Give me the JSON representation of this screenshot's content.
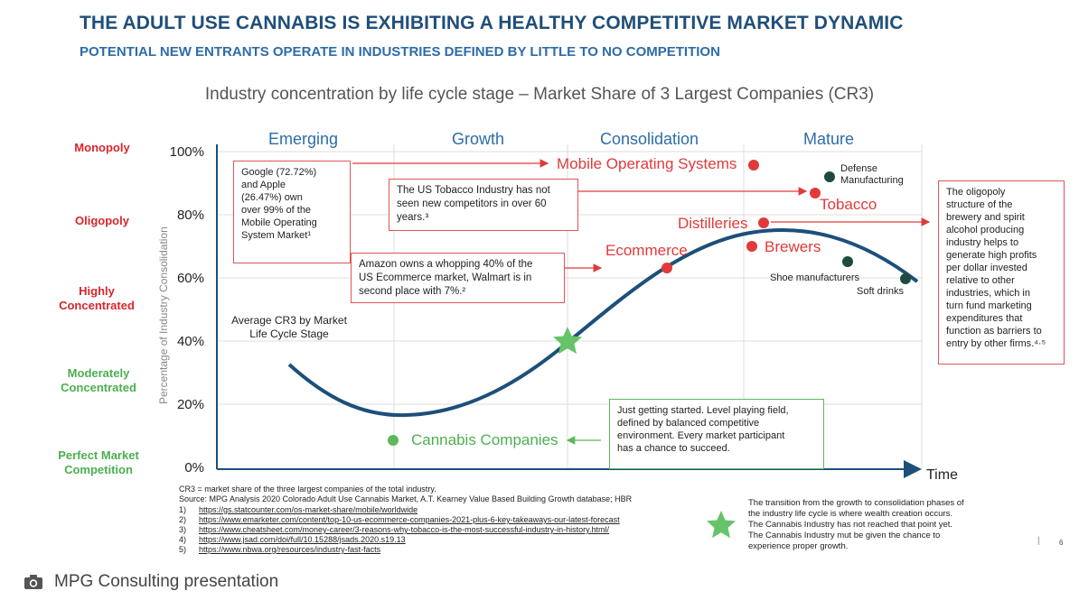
{
  "slide": {
    "title": "THE ADULT USE CANNABIS IS EXHIBITING A HEALTHY COMPETITIVE MARKET DYNAMIC",
    "subtitle": "POTENTIAL NEW ENTRANTS OPERATE IN INDUSTRIES DEFINED BY LITTLE TO NO COMPETITION",
    "chart_title": "Industry concentration by life cycle stage – Market Share of 3 Largest Companies (CR3)",
    "page_number": "6",
    "page_separator": "|"
  },
  "stages": [
    "Emerging",
    "Growth",
    "Consolidation",
    "Mature"
  ],
  "categories": [
    {
      "label_lines": [
        "Monopoly"
      ],
      "color": "#d9262b"
    },
    {
      "label_lines": [
        "Oligopoly"
      ],
      "color": "#d9262b"
    },
    {
      "label_lines": [
        "Highly",
        "Concentrated"
      ],
      "color": "#d9262b"
    },
    {
      "label_lines": [
        "Moderately",
        "Concentrated"
      ],
      "color": "#4caf50"
    },
    {
      "label_lines": [
        "Perfect Market",
        "Competition"
      ],
      "color": "#4caf50"
    }
  ],
  "axis": {
    "y_label": "Percentage of Industry Consolidation",
    "y_ticks": [
      "100%",
      "80%",
      "60%",
      "40%",
      "20%",
      "0%"
    ],
    "x_label": "Time"
  },
  "annotations": {
    "google_box": [
      "Google (72.72%)",
      "and Apple",
      "(26.47%) own",
      "over 99% of the",
      "Mobile Operating",
      "System Market¹"
    ],
    "tobacco_box": [
      "The US Tobacco Industry has not",
      "seen new competitors in over 60",
      "years.³"
    ],
    "amazon_box": [
      "Amazon owns a whopping 40% of the",
      "US Ecommerce market, Walmart is in",
      "second place with 7%.²"
    ],
    "cr3_label": [
      "Average CR3 by Market",
      "Life Cycle Stage"
    ],
    "cannabis_box": [
      "Just getting started. Level playing field,",
      "defined by balanced competitive",
      "environment. Every market participant",
      "has a chance to succeed."
    ],
    "oligopoly_box": [
      "The oligopoly",
      "structure of the",
      "brewery and spirit",
      "alcohol producing",
      "industry helps to",
      "generate high profits",
      "per dollar invested",
      "relative to other",
      "industries, which in",
      "turn fund marketing",
      "expenditures that",
      "function as barriers to",
      "entry by other firms.⁴·⁵"
    ]
  },
  "points": {
    "mobile": "Mobile Operating Systems",
    "tobacco": "Tobacco",
    "distilleries": "Distilleries",
    "brewers": "Brewers",
    "ecommerce": "Ecommerce",
    "defense": [
      "Defense",
      "Manufacturing"
    ],
    "shoe": "Shoe manufacturers",
    "soft_drinks": "Soft drinks",
    "cannabis": "Cannabis Companies"
  },
  "colors": {
    "title": "#1f4e79",
    "stage": "#2e6ca8",
    "curve": "#1d4f7a",
    "red": "#e03a3a",
    "dark_point": "#1f4a3f",
    "green": "#5cb85c",
    "grid": "#dddddd"
  },
  "legend_star": [
    "The transition from the growth to consolidation phases of",
    "the industry life cycle is where wealth creation occurs.",
    "The Cannabis Industry has not reached that point yet.",
    "The Cannabis Industry mut be given the chance to",
    "experience proper growth."
  ],
  "footnotes": {
    "definition": "CR3 = market share of the three largest companies of the total industry.",
    "source": "Source: MPG Analysis 2020 Colorado Adult Use Cannabis Market, A.T. Kearney Value Based Building Growth database; HBR",
    "refs": [
      {
        "num": "1)",
        "url": "https://gs.statcounter.com/os-market-share/mobile/worldwide"
      },
      {
        "num": "2)",
        "url": "https://www.emarketer.com/content/top-10-us-ecommerce-companies-2021-plus-6-key-takeaways-our-latest-forecast"
      },
      {
        "num": "3)",
        "url": "https://www.cheatsheet.com/money-career/3-reasons-why-tobacco-is-the-most-successful-industry-in-history.html/"
      },
      {
        "num": "4)",
        "url": "https://www.jsad.com/doi/full/10.15288/jsads.2020.s19.13"
      },
      {
        "num": "5)",
        "url": "https://www.nbwa.org/resources/industry-fast-facts"
      }
    ]
  },
  "caption": "MPG Consulting presentation"
}
